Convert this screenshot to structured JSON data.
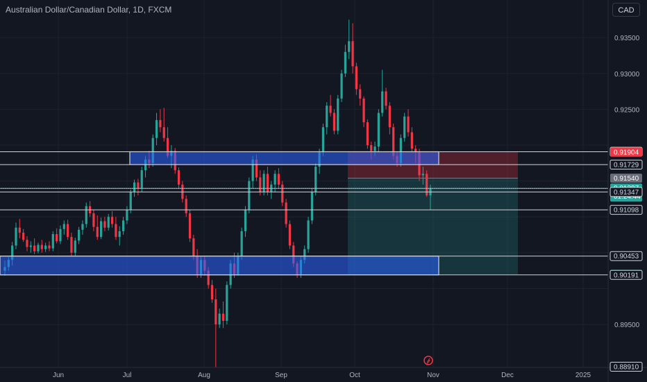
{
  "header": {
    "title": "Australian Dollar/Canadian Dollar, 1D, FXCM",
    "currency_button": "CAD"
  },
  "colors": {
    "background": "#131722",
    "up": "#26a69a",
    "down": "#f23645",
    "zone_fill": "#2962ff",
    "grid": "#1e222d",
    "text": "#b2b5be"
  },
  "chart_data": {
    "type": "candlestick",
    "y_range": [
      0.8891,
      0.9385
    ],
    "y_ticks": [
      "0.93500",
      "0.93000",
      "0.92500",
      "0.89500"
    ],
    "x_ticks": [
      "Jun",
      "Jul",
      "Aug",
      "Sep",
      "Oct",
      "Nov",
      "Dec",
      "2025"
    ],
    "price_labels": [
      {
        "text": "0.91908",
        "price": 0.91908,
        "style": "line"
      },
      {
        "text": "0.91904",
        "price": 0.91904,
        "style": "red"
      },
      {
        "text": "0.91729",
        "price": 0.91729,
        "style": "line"
      },
      {
        "text": "0.91540",
        "price": 0.9154,
        "style": "gray"
      },
      {
        "text": "0.91397",
        "price": 0.91397,
        "style": "green",
        "sub": "01:24:44"
      },
      {
        "text": "0.91347",
        "price": 0.91347,
        "style": "line"
      },
      {
        "text": "0.91098",
        "price": 0.91098,
        "style": "line"
      },
      {
        "text": "0.90453",
        "price": 0.90453,
        "style": "line"
      },
      {
        "text": "0.90199",
        "price": 0.90199,
        "style": "teal"
      },
      {
        "text": "0.90191",
        "price": 0.90191,
        "style": "line"
      },
      {
        "text": "0.88910",
        "price": 0.8891,
        "style": "line"
      }
    ],
    "horizontal_lines": [
      0.91908,
      0.91729,
      0.91397,
      0.91347,
      0.91098,
      0.90453,
      0.90191
    ],
    "zones": [
      {
        "name": "resistance-zone",
        "top": 0.91908,
        "bottom": 0.91729
      },
      {
        "name": "support-zone",
        "top": 0.90453,
        "bottom": 0.90191
      }
    ],
    "position": {
      "entry": 0.9154,
      "stop": 0.91904,
      "target": 0.90199
    },
    "candles": [
      [
        0.9025,
        0.9039,
        0.9018,
        0.903
      ],
      [
        0.903,
        0.9044,
        0.9025,
        0.904
      ],
      [
        0.904,
        0.9065,
        0.9032,
        0.906
      ],
      [
        0.906,
        0.9092,
        0.9055,
        0.9085
      ],
      [
        0.9085,
        0.9097,
        0.907,
        0.9078
      ],
      [
        0.9078,
        0.9083,
        0.9065,
        0.9068
      ],
      [
        0.9068,
        0.9073,
        0.9052,
        0.9058
      ],
      [
        0.9058,
        0.9066,
        0.905,
        0.906
      ],
      [
        0.906,
        0.907,
        0.9048,
        0.9052
      ],
      [
        0.9052,
        0.9064,
        0.9049,
        0.9061
      ],
      [
        0.9061,
        0.9068,
        0.905,
        0.9055
      ],
      [
        0.9055,
        0.9064,
        0.9051,
        0.906
      ],
      [
        0.906,
        0.9066,
        0.9052,
        0.9056
      ],
      [
        0.9056,
        0.908,
        0.9052,
        0.9076
      ],
      [
        0.9076,
        0.9084,
        0.9063,
        0.9066
      ],
      [
        0.9066,
        0.9088,
        0.9062,
        0.9083
      ],
      [
        0.9083,
        0.9095,
        0.9075,
        0.909
      ],
      [
        0.909,
        0.9096,
        0.9068,
        0.9072
      ],
      [
        0.9072,
        0.9078,
        0.9045,
        0.905
      ],
      [
        0.905,
        0.9071,
        0.9045,
        0.9067
      ],
      [
        0.9067,
        0.9086,
        0.9062,
        0.9082
      ],
      [
        0.9082,
        0.9095,
        0.9075,
        0.909
      ],
      [
        0.909,
        0.912,
        0.9085,
        0.9115
      ],
      [
        0.9115,
        0.9122,
        0.91,
        0.9105
      ],
      [
        0.9105,
        0.911,
        0.908,
        0.9086
      ],
      [
        0.9086,
        0.9102,
        0.9068,
        0.9072
      ],
      [
        0.9072,
        0.9099,
        0.9069,
        0.9094
      ],
      [
        0.9094,
        0.91,
        0.908,
        0.9085
      ],
      [
        0.9085,
        0.9104,
        0.9081,
        0.91
      ],
      [
        0.91,
        0.9108,
        0.9085,
        0.909
      ],
      [
        0.909,
        0.91,
        0.9068,
        0.9072
      ],
      [
        0.9072,
        0.9087,
        0.906,
        0.908
      ],
      [
        0.908,
        0.91,
        0.9075,
        0.9095
      ],
      [
        0.9095,
        0.9115,
        0.909,
        0.911
      ],
      [
        0.911,
        0.9138,
        0.9105,
        0.9135
      ],
      [
        0.9135,
        0.9152,
        0.9128,
        0.9148
      ],
      [
        0.9148,
        0.9153,
        0.913,
        0.914
      ],
      [
        0.914,
        0.917,
        0.9135,
        0.9165
      ],
      [
        0.9165,
        0.9185,
        0.9155,
        0.918
      ],
      [
        0.918,
        0.9192,
        0.9168,
        0.9175
      ],
      [
        0.9175,
        0.9215,
        0.917,
        0.921
      ],
      [
        0.921,
        0.9245,
        0.92,
        0.9235
      ],
      [
        0.9235,
        0.925,
        0.9218,
        0.9225
      ],
      [
        0.9225,
        0.9252,
        0.9205,
        0.921
      ],
      [
        0.921,
        0.9225,
        0.9182,
        0.9185
      ],
      [
        0.9185,
        0.92,
        0.9168,
        0.9192
      ],
      [
        0.9192,
        0.9196,
        0.916,
        0.9165
      ],
      [
        0.9165,
        0.9169,
        0.914,
        0.9145
      ],
      [
        0.9145,
        0.915,
        0.912,
        0.9125
      ],
      [
        0.9125,
        0.913,
        0.91,
        0.9105
      ],
      [
        0.9105,
        0.911,
        0.9065,
        0.907
      ],
      [
        0.907,
        0.9075,
        0.904,
        0.9045
      ],
      [
        0.9045,
        0.9055,
        0.9015,
        0.902
      ],
      [
        0.902,
        0.9045,
        0.9015,
        0.904
      ],
      [
        0.904,
        0.9045,
        0.9018,
        0.9025
      ],
      [
        0.9025,
        0.903,
        0.9,
        0.9005
      ],
      [
        0.9005,
        0.9012,
        0.898,
        0.8985
      ],
      [
        0.8985,
        0.9,
        0.889,
        0.895
      ],
      [
        0.895,
        0.8972,
        0.8945,
        0.8965
      ],
      [
        0.8965,
        0.8982,
        0.8945,
        0.8955
      ],
      [
        0.8955,
        0.901,
        0.895,
        0.9005
      ],
      [
        0.9005,
        0.904,
        0.9,
        0.9035
      ],
      [
        0.9035,
        0.905,
        0.9015,
        0.902
      ],
      [
        0.902,
        0.905,
        0.9018,
        0.9045
      ],
      [
        0.9045,
        0.9085,
        0.904,
        0.908
      ],
      [
        0.908,
        0.9115,
        0.9072,
        0.911
      ],
      [
        0.911,
        0.9155,
        0.9105,
        0.915
      ],
      [
        0.915,
        0.9185,
        0.914,
        0.918
      ],
      [
        0.918,
        0.9187,
        0.915,
        0.9155
      ],
      [
        0.9155,
        0.9165,
        0.913,
        0.9135
      ],
      [
        0.9135,
        0.9165,
        0.913,
        0.916
      ],
      [
        0.916,
        0.917,
        0.913,
        0.9135
      ],
      [
        0.9135,
        0.915,
        0.9125,
        0.9145
      ],
      [
        0.9145,
        0.9165,
        0.9135,
        0.916
      ],
      [
        0.916,
        0.9168,
        0.914,
        0.9145
      ],
      [
        0.9145,
        0.915,
        0.9115,
        0.912
      ],
      [
        0.912,
        0.9125,
        0.9085,
        0.909
      ],
      [
        0.909,
        0.9095,
        0.9055,
        0.906
      ],
      [
        0.906,
        0.9065,
        0.903,
        0.9035
      ],
      [
        0.9035,
        0.9038,
        0.9015,
        0.902
      ],
      [
        0.902,
        0.9045,
        0.9015,
        0.904
      ],
      [
        0.904,
        0.906,
        0.9035,
        0.9055
      ],
      [
        0.9055,
        0.91,
        0.905,
        0.9095
      ],
      [
        0.9095,
        0.914,
        0.909,
        0.9135
      ],
      [
        0.9135,
        0.9175,
        0.913,
        0.917
      ],
      [
        0.917,
        0.9195,
        0.916,
        0.919
      ],
      [
        0.919,
        0.923,
        0.9185,
        0.9225
      ],
      [
        0.9225,
        0.926,
        0.9215,
        0.9255
      ],
      [
        0.9255,
        0.927,
        0.924,
        0.9245
      ],
      [
        0.9245,
        0.925,
        0.9215,
        0.922
      ],
      [
        0.922,
        0.927,
        0.9215,
        0.9265
      ],
      [
        0.9265,
        0.9305,
        0.926,
        0.93
      ],
      [
        0.93,
        0.934,
        0.9295,
        0.933
      ],
      [
        0.933,
        0.9375,
        0.932,
        0.9345
      ],
      [
        0.9345,
        0.937,
        0.93,
        0.931
      ],
      [
        0.931,
        0.9315,
        0.927,
        0.9278
      ],
      [
        0.9278,
        0.9285,
        0.9255,
        0.9265
      ],
      [
        0.9265,
        0.9268,
        0.9225,
        0.9232
      ],
      [
        0.9232,
        0.9236,
        0.9195,
        0.92
      ],
      [
        0.92,
        0.9205,
        0.918,
        0.9192
      ],
      [
        0.9192,
        0.9205,
        0.9185,
        0.9198
      ],
      [
        0.9198,
        0.925,
        0.919,
        0.9245
      ],
      [
        0.9245,
        0.9305,
        0.924,
        0.9275
      ],
      [
        0.9275,
        0.928,
        0.925,
        0.9255
      ],
      [
        0.9255,
        0.926,
        0.9215,
        0.9225
      ],
      [
        0.9225,
        0.923,
        0.918,
        0.9185
      ],
      [
        0.9185,
        0.919,
        0.917,
        0.9175
      ],
      [
        0.9175,
        0.9215,
        0.917,
        0.921
      ],
      [
        0.921,
        0.9245,
        0.9205,
        0.924
      ],
      [
        0.924,
        0.925,
        0.9212,
        0.9218
      ],
      [
        0.9218,
        0.9225,
        0.919,
        0.9195
      ],
      [
        0.9195,
        0.92,
        0.9175,
        0.919
      ],
      [
        0.919,
        0.9195,
        0.915,
        0.9158
      ],
      [
        0.9158,
        0.917,
        0.9145,
        0.916
      ],
      [
        0.916,
        0.9165,
        0.9128,
        0.913
      ],
      [
        0.913,
        0.9145,
        0.911,
        0.914
      ]
    ]
  }
}
